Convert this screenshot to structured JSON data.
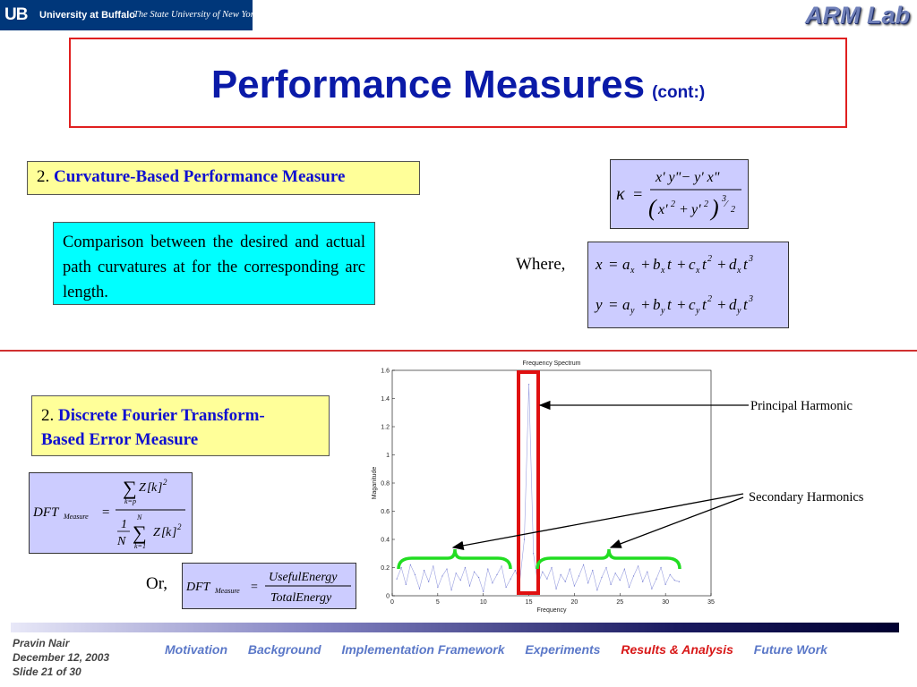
{
  "header": {
    "ub_mark": "UB",
    "ub_name": "University at Buffalo",
    "ub_sub": "The State University of New York",
    "lab_logo": "ARM Lab"
  },
  "title": {
    "main": "Performance Measures",
    "suffix": "(cont:)"
  },
  "section1": {
    "number": "2.",
    "heading": "Curvature-Based Performance Measure",
    "description": "Comparison between the desired and actual path curvatures at for the corresponding arc length.",
    "where_label": "Where,",
    "kappa_formula": "κ = (x'y'' − y'x'') / (x'² + y'²)^(3/2)",
    "param_x": "x = a_x + b_x t + c_x t^2 + d_x t^3",
    "param_y": "y = a_y + b_y t + c_y t^2 + d_y t^3"
  },
  "section2": {
    "number": "2.",
    "heading_line1": "Discrete Fourier Transform-",
    "heading_line2": "Based Error Measure",
    "dft_formula_1": "DFT_Measure = (Σ_{k=p} Z[k]^2) / ((1/N) Σ_{k=1}^{N} Z[k]^2)",
    "or_label": "Or,",
    "dft_formula_2": "DFT_Measure = UsefulEnergy / TotalEnergy"
  },
  "annotations": {
    "principal": "Principal Harmonic",
    "secondary": "Secondary Harmonics"
  },
  "chart_data": {
    "type": "line",
    "title": "Frequency Spectrum",
    "xlabel": "Frequency",
    "ylabel": "Maganitude",
    "xlim": [
      0,
      35
    ],
    "ylim": [
      0,
      1.6
    ],
    "xticks": [
      0,
      5,
      10,
      15,
      20,
      25,
      30,
      35
    ],
    "yticks": [
      0,
      0.2,
      0.4,
      0.6,
      0.8,
      1,
      1.2,
      1.4,
      1.6
    ],
    "grid": false,
    "x": [
      0.5,
      1,
      1.5,
      2,
      2.5,
      3,
      3.5,
      4,
      4.5,
      5,
      5.5,
      6,
      6.5,
      7,
      7.5,
      8,
      8.5,
      9,
      9.5,
      10,
      10.5,
      11,
      11.5,
      12,
      12.5,
      13,
      13.5,
      14,
      14.5,
      15,
      15.5,
      16,
      16.5,
      17,
      17.5,
      18,
      18.5,
      19,
      19.5,
      20,
      20.5,
      21,
      21.5,
      22,
      22.5,
      23,
      23.5,
      24,
      24.5,
      25,
      25.5,
      26,
      26.5,
      27,
      27.5,
      28,
      28.5,
      29,
      29.5,
      30,
      30.5,
      31,
      31.5
    ],
    "values": [
      0.12,
      0.2,
      0.08,
      0.22,
      0.15,
      0.05,
      0.18,
      0.1,
      0.21,
      0.06,
      0.14,
      0.19,
      0.04,
      0.16,
      0.11,
      0.2,
      0.07,
      0.17,
      0.13,
      0.03,
      0.19,
      0.09,
      0.15,
      0.21,
      0.06,
      0.12,
      0.18,
      0.1,
      0.4,
      1.5,
      0.3,
      0.08,
      0.17,
      0.12,
      0.2,
      0.05,
      0.15,
      0.1,
      0.19,
      0.07,
      0.14,
      0.22,
      0.09,
      0.18,
      0.04,
      0.13,
      0.2,
      0.08,
      0.16,
      0.11,
      0.19,
      0.06,
      0.14,
      0.21,
      0.1,
      0.17,
      0.05,
      0.12,
      0.2,
      0.08,
      0.15,
      0.11,
      0.1
    ]
  },
  "footer": {
    "author": "Pravin Nair",
    "date": "December 12, 2003",
    "slide": "Slide 21 of 30",
    "nav": [
      "Motivation",
      "Background",
      "Implementation Framework",
      "Experiments",
      "Results & Analysis",
      "Future Work"
    ],
    "active_index": 4,
    "accent_color": "#d81818"
  }
}
